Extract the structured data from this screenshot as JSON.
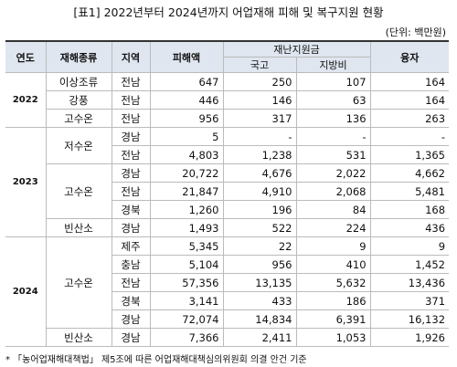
{
  "header": {
    "title": "[표1] 2022년부터 2024년까지 어업재해 피해 및 복구지원 현황",
    "unit": "(단위: 백만원)"
  },
  "table": {
    "columns": {
      "year": "연도",
      "type": "재해종류",
      "region": "지역",
      "damage": "피해액",
      "support": "재난지원금",
      "national": "국고",
      "local": "지방비",
      "loan": "융자"
    },
    "groups": [
      {
        "year": "2022",
        "disasters": [
          {
            "type": "이상조류",
            "rows": [
              [
                "전남",
                "647",
                "250",
                "107",
                "164"
              ]
            ]
          },
          {
            "type": "강풍",
            "rows": [
              [
                "전남",
                "446",
                "146",
                "63",
                "164"
              ]
            ]
          },
          {
            "type": "고수온",
            "rows": [
              [
                "전남",
                "956",
                "317",
                "136",
                "263"
              ]
            ]
          }
        ]
      },
      {
        "year": "2023",
        "disasters": [
          {
            "type": "저수온",
            "rows": [
              [
                "경남",
                "5",
                "-",
                "-",
                "-"
              ],
              [
                "전남",
                "4,803",
                "1,238",
                "531",
                "1,365"
              ]
            ]
          },
          {
            "type": "고수온",
            "rows": [
              [
                "경남",
                "20,722",
                "4,676",
                "2,022",
                "4,662"
              ],
              [
                "전남",
                "21,847",
                "4,910",
                "2,068",
                "5,481"
              ],
              [
                "경북",
                "1,260",
                "196",
                "84",
                "168"
              ]
            ]
          },
          {
            "type": "빈산소",
            "rows": [
              [
                "경남",
                "1,493",
                "522",
                "224",
                "436"
              ]
            ]
          }
        ]
      },
      {
        "year": "2024",
        "disasters": [
          {
            "type": "고수온",
            "rows": [
              [
                "제주",
                "5,345",
                "22",
                "9",
                "9"
              ],
              [
                "충남",
                "5,104",
                "956",
                "410",
                "1,452"
              ],
              [
                "전남",
                "57,356",
                "13,135",
                "5,632",
                "13,436"
              ],
              [
                "경북",
                "3,141",
                "433",
                "186",
                "371"
              ],
              [
                "경남",
                "72,074",
                "14,834",
                "6,391",
                "16,132"
              ]
            ]
          },
          {
            "type": "빈산소",
            "rows": [
              [
                "경남",
                "7,366",
                "2,411",
                "1,053",
                "1,926"
              ]
            ]
          }
        ]
      }
    ]
  },
  "footnote": "* 「농어업재해대책법」 제5조에 따른 어업재해대책심의위원회 의결 안건 기준"
}
